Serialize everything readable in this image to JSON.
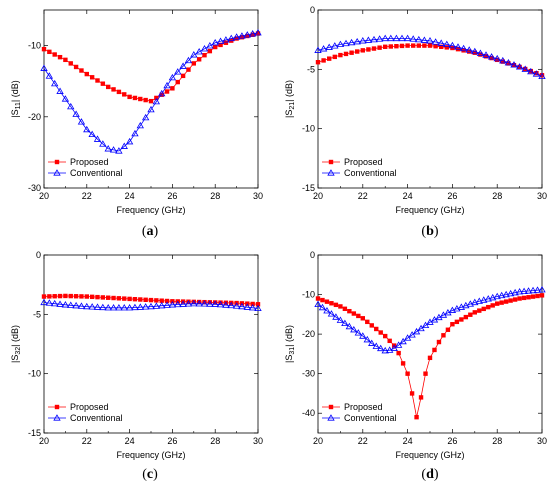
{
  "chart_data": [
    {
      "type": "line",
      "caption": "a",
      "xlabel": "Frequency (GHz)",
      "ylabel": "|S11| (dB)",
      "ylabel_main": "|S",
      "ylabel_sub": "11",
      "ylabel_end": "| (dB)",
      "xlim": [
        20,
        30
      ],
      "ylim": [
        -30,
        -5
      ],
      "xticks": [
        20,
        22,
        24,
        26,
        28,
        30
      ],
      "yticks": [
        -30,
        -20,
        -10
      ],
      "legend_position": "bottom-left",
      "grid": false,
      "series": [
        {
          "name": "Proposed",
          "marker": "square",
          "color": "#ff0000",
          "x": [
            20,
            21,
            22,
            23,
            24,
            25,
            26,
            27,
            28,
            29,
            30
          ],
          "y": [
            -10.5,
            -12.0,
            -14.0,
            -15.8,
            -17.2,
            -17.8,
            -16.0,
            -12.5,
            -10.2,
            -9.0,
            -8.3
          ]
        },
        {
          "name": "Conventional",
          "marker": "triangle",
          "color": "#0000ff",
          "x": [
            20,
            21,
            22,
            23,
            23.5,
            24,
            25,
            26,
            27,
            28,
            29,
            30
          ],
          "y": [
            -13.2,
            -17.5,
            -21.8,
            -24.5,
            -24.8,
            -23.5,
            -19.0,
            -14.5,
            -11.3,
            -9.6,
            -8.8,
            -8.2
          ]
        }
      ]
    },
    {
      "type": "line",
      "caption": "b",
      "xlabel": "Frequency (GHz)",
      "ylabel": "|S21| (dB)",
      "ylabel_main": "|S",
      "ylabel_sub": "21",
      "ylabel_end": "| (dB)",
      "xlim": [
        20,
        30
      ],
      "ylim": [
        -15,
        0
      ],
      "xticks": [
        20,
        22,
        24,
        26,
        28,
        30
      ],
      "yticks": [
        -15,
        -10,
        -5,
        0
      ],
      "legend_position": "bottom-left",
      "grid": false,
      "series": [
        {
          "name": "Proposed",
          "marker": "square",
          "color": "#ff0000",
          "x": [
            20,
            21,
            22,
            23,
            24,
            25,
            26,
            27,
            28,
            29,
            30
          ],
          "y": [
            -4.4,
            -3.8,
            -3.4,
            -3.1,
            -3.0,
            -3.0,
            -3.2,
            -3.6,
            -4.2,
            -4.8,
            -5.5
          ]
        },
        {
          "name": "Conventional",
          "marker": "triangle",
          "color": "#0000ff",
          "x": [
            20,
            21,
            22,
            23,
            24,
            25,
            26,
            27,
            28,
            29,
            30
          ],
          "y": [
            -3.4,
            -2.9,
            -2.6,
            -2.4,
            -2.4,
            -2.6,
            -3.0,
            -3.5,
            -4.1,
            -4.8,
            -5.6
          ]
        }
      ]
    },
    {
      "type": "line",
      "caption": "c",
      "xlabel": "Frequency (GHz)",
      "ylabel": "|S32| (dB)",
      "ylabel_main": "|S",
      "ylabel_sub": "32",
      "ylabel_end": "| (dB)",
      "xlim": [
        20,
        30
      ],
      "ylim": [
        -15,
        0
      ],
      "xticks": [
        20,
        22,
        24,
        26,
        28,
        30
      ],
      "yticks": [
        -15,
        -10,
        -5,
        0
      ],
      "legend_position": "bottom-left",
      "grid": false,
      "series": [
        {
          "name": "Proposed",
          "marker": "square",
          "color": "#ff0000",
          "x": [
            20,
            21,
            22,
            23,
            24,
            25,
            26,
            27,
            28,
            29,
            30
          ],
          "y": [
            -3.5,
            -3.45,
            -3.5,
            -3.6,
            -3.7,
            -3.8,
            -3.9,
            -3.95,
            -4.0,
            -4.05,
            -4.15
          ]
        },
        {
          "name": "Conventional",
          "marker": "triangle",
          "color": "#0000ff",
          "x": [
            20,
            21,
            22,
            23,
            24,
            25,
            26,
            27,
            28,
            29,
            30
          ],
          "y": [
            -4.0,
            -4.2,
            -4.35,
            -4.45,
            -4.45,
            -4.35,
            -4.2,
            -4.1,
            -4.15,
            -4.3,
            -4.5
          ]
        }
      ]
    },
    {
      "type": "line",
      "caption": "d",
      "xlabel": "Frequency (GHz)",
      "ylabel": "|S31| (dB)",
      "ylabel_main": "|S",
      "ylabel_sub": "31",
      "ylabel_end": "| (dB)",
      "xlim": [
        20,
        30
      ],
      "ylim": [
        -45,
        0
      ],
      "xticks": [
        20,
        22,
        24,
        26,
        28,
        30
      ],
      "yticks": [
        -40,
        -30,
        -20,
        -10,
        0
      ],
      "legend_position": "bottom-left",
      "grid": false,
      "series": [
        {
          "name": "Proposed",
          "marker": "square",
          "color": "#ff0000",
          "x": [
            20,
            21,
            22,
            23,
            23.5,
            24,
            24.2,
            24.4,
            24.6,
            24.8,
            25,
            25.5,
            26,
            27,
            28,
            29,
            30
          ],
          "y": [
            -11.0,
            -13.0,
            -16.0,
            -20.5,
            -23.5,
            -30.0,
            -35.0,
            -41.0,
            -36.0,
            -30.0,
            -26.0,
            -21.0,
            -17.5,
            -14.5,
            -12.3,
            -11.0,
            -10.2
          ]
        },
        {
          "name": "Conventional",
          "marker": "triangle",
          "color": "#0000ff",
          "x": [
            20,
            21,
            22,
            22.5,
            23,
            23.3,
            23.6,
            24,
            25,
            26,
            27,
            28,
            29,
            30
          ],
          "y": [
            -12.5,
            -16.5,
            -20.5,
            -22.8,
            -24.2,
            -24.0,
            -22.8,
            -21.0,
            -17.0,
            -14.0,
            -12.0,
            -10.5,
            -9.3,
            -8.8
          ]
        }
      ]
    }
  ]
}
